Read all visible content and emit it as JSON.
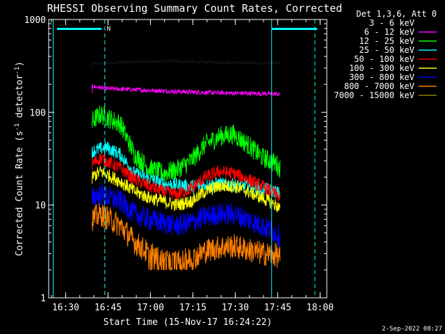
{
  "chart_data": {
    "type": "line",
    "title": "RHESSI Observing Summary Count Rates, Corrected",
    "xlabel": "Start Time (15-Nov-17 16:24:22)",
    "ylabel_main": "Corrected Count Rate (s",
    "ylabel_sup1": "-1",
    "ylabel_mid": " detector",
    "ylabel_sup2": "-1",
    "ylabel_end": ")",
    "y_scale": "log",
    "ylim": [
      1,
      1000
    ],
    "xlim_minutes": [
      -0.37,
      98.0
    ],
    "x_ticks": [
      {
        "label": "16:30",
        "min": 5.63
      },
      {
        "label": "16:45",
        "min": 20.63
      },
      {
        "label": "17:00",
        "min": 35.63
      },
      {
        "label": "17:15",
        "min": 50.63
      },
      {
        "label": "17:30",
        "min": 65.63
      },
      {
        "label": "17:45",
        "min": 80.63
      },
      {
        "label": "18:00",
        "min": 95.63
      }
    ],
    "y_ticks": [
      {
        "label": "1000",
        "v": 1000
      },
      {
        "label": "100",
        "v": 100
      },
      {
        "label": "10",
        "v": 10
      },
      {
        "label": "1",
        "v": 1
      }
    ],
    "legend_title": "Det 1,3,6, Att 0",
    "series": [
      {
        "name": "3 - 6 keV",
        "color": "#000000",
        "t": [
          15,
          20,
          30,
          40,
          50,
          60,
          70,
          80,
          81.5
        ],
        "v": [
          330,
          340,
          350,
          355,
          350,
          345,
          340,
          340,
          335
        ]
      },
      {
        "name": "6 - 12 keV",
        "color": "#ff00ff",
        "t": [
          15,
          20,
          30,
          40,
          50,
          60,
          70,
          80,
          81.5
        ],
        "v": [
          190,
          180,
          175,
          170,
          165,
          162,
          160,
          158,
          155
        ]
      },
      {
        "name": "12 - 25 keV",
        "color": "#00ff00",
        "t": [
          15,
          18,
          25,
          30,
          35,
          40,
          45,
          50,
          55,
          60,
          65,
          70,
          75,
          80,
          81.5
        ],
        "v": [
          80,
          95,
          75,
          35,
          25,
          22,
          24,
          30,
          45,
          55,
          58,
          45,
          33,
          28,
          25
        ]
      },
      {
        "name": "25 - 50 keV",
        "color": "#00ffff",
        "t": [
          15,
          20,
          25,
          30,
          40,
          50,
          60,
          70,
          80,
          81.5
        ],
        "v": [
          38,
          42,
          35,
          22,
          17,
          16,
          17,
          16,
          14,
          13
        ]
      },
      {
        "name": "50 - 100 keV",
        "color": "#ff0000",
        "t": [
          15,
          18,
          25,
          30,
          35,
          40,
          45,
          50,
          55,
          60,
          65,
          70,
          75,
          80,
          81.5
        ],
        "v": [
          28,
          32,
          25,
          19,
          16,
          14,
          13,
          15,
          20,
          23,
          22,
          19,
          16,
          13,
          12
        ]
      },
      {
        "name": "100 - 300 keV",
        "color": "#ffff00",
        "t": [
          15,
          18,
          25,
          30,
          35,
          40,
          45,
          50,
          55,
          60,
          65,
          70,
          75,
          80,
          81.5
        ],
        "v": [
          20,
          23,
          18,
          14,
          12,
          11,
          10,
          11,
          14,
          16,
          16,
          14,
          12,
          10,
          9
        ]
      },
      {
        "name": "300 - 800 keV",
        "color": "#0000ff",
        "t": [
          15,
          18,
          25,
          30,
          35,
          40,
          45,
          50,
          55,
          60,
          65,
          70,
          75,
          80,
          81.5
        ],
        "v": [
          12,
          13,
          11,
          8,
          7,
          6.5,
          6,
          6.5,
          7.5,
          8,
          8,
          7,
          6,
          5,
          4.5
        ]
      },
      {
        "name": "800 - 7000 keV",
        "color": "#ff8000",
        "t": [
          15,
          18,
          25,
          30,
          35,
          40,
          45,
          50,
          55,
          60,
          65,
          70,
          75,
          80,
          81.5
        ],
        "v": [
          7,
          8,
          6,
          4,
          3,
          2.5,
          2.4,
          2.6,
          3.2,
          3.5,
          3.6,
          3.3,
          3,
          2.9,
          2.7
        ]
      },
      {
        "name": "7000 - 15000 keV",
        "color": "#8b8000",
        "t": [],
        "v": []
      }
    ],
    "annotations": {
      "flag_label": "N",
      "timestamp": "2-Sep-2022 08:27"
    }
  }
}
